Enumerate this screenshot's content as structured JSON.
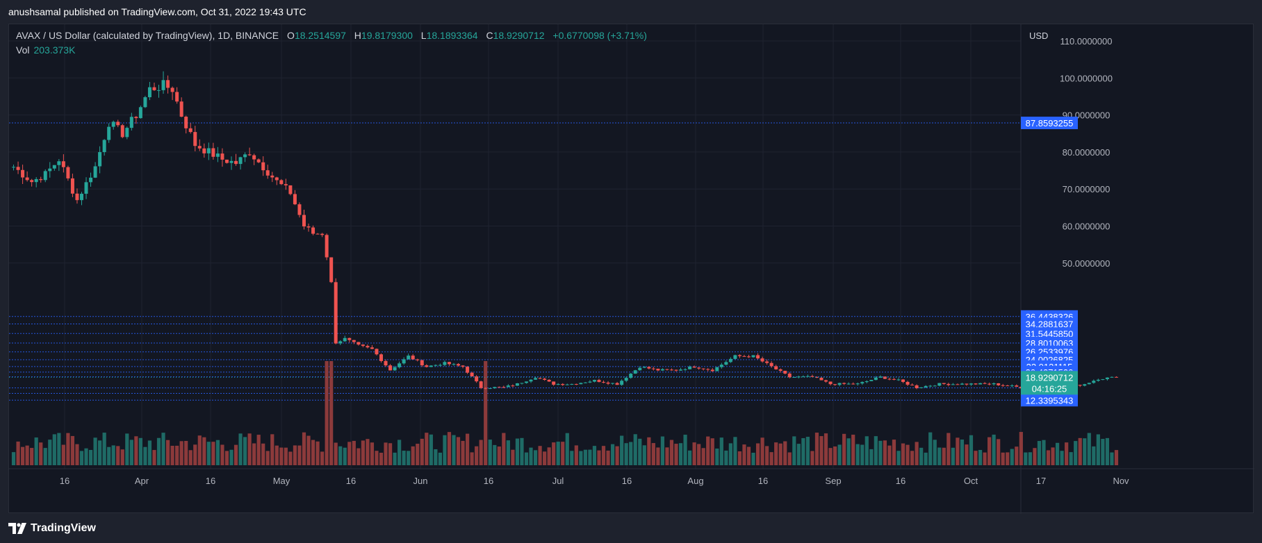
{
  "header": {
    "publish_line": "anushsamal published on TradingView.com, Oct 31, 2022 19:43 UTC"
  },
  "legend": {
    "symbol": "AVAX / US Dollar (calculated by TradingView), 1D, BINANCE",
    "o_label": "O",
    "o_value": "18.2514597",
    "h_label": "H",
    "h_value": "19.8179300",
    "l_label": "L",
    "l_value": "18.1893364",
    "c_label": "C",
    "c_value": "18.9290712",
    "change": "+0.6770098 (+3.71%)",
    "vol_label": "Vol",
    "vol_value": "203.373K"
  },
  "footer": {
    "brand": "TradingView"
  },
  "colors": {
    "up": "#26a69a",
    "down": "#ef5350",
    "vol_up": "#1f6b66",
    "vol_down": "#8c3a3b",
    "level_line": "#2962ff",
    "price_tag": "#2962ff",
    "current_tag": "#26a69a"
  },
  "chart_data": {
    "type": "candlestick",
    "currency_label": "USD",
    "y_axis_ticks": [
      "110.0000000",
      "100.0000000",
      "90.0000000",
      "80.0000000",
      "70.0000000",
      "60.0000000",
      "50.0000000"
    ],
    "x_axis_ticks": [
      "16",
      "Apr",
      "16",
      "May",
      "16",
      "Jun",
      "16",
      "Jul",
      "16",
      "Aug",
      "16",
      "Sep",
      "16",
      "Oct",
      "17",
      "Nov"
    ],
    "level_lines": [
      {
        "label": "87.8593255",
        "value": 87.8593255
      },
      {
        "label": "36.4438326",
        "value": 36.4438326
      },
      {
        "label": "34.2881637",
        "value": 34.2881637
      },
      {
        "label": "31.5445850",
        "value": 31.544585
      },
      {
        "label": "28.8010063",
        "value": 28.8010063
      },
      {
        "label": "26.2533976",
        "value": 26.2533976
      },
      {
        "label": "24.0026825",
        "value": 24.0026825
      },
      {
        "label": "22.0131115",
        "value": 22.0131115
      },
      {
        "label": "20.4271520",
        "value": 20.427152
      },
      {
        "label": "19.0746682",
        "value": 19.0746682
      },
      {
        "label": "15.8669926",
        "value": 15.8669926
      },
      {
        "label": "14.2992334",
        "value": 14.2992334
      },
      {
        "label": "12.3395343",
        "value": 12.3395343
      }
    ],
    "current_price": {
      "label": "18.9290712",
      "value": 18.9290712,
      "countdown": "04:16:25"
    },
    "close_series": [
      {
        "date": "2022-03-02",
        "close": 76
      },
      {
        "date": "2022-03-06",
        "close": 72
      },
      {
        "date": "2022-03-09",
        "close": 74
      },
      {
        "date": "2022-03-12",
        "close": 78
      },
      {
        "date": "2022-03-16",
        "close": 67
      },
      {
        "date": "2022-03-20",
        "close": 76
      },
      {
        "date": "2022-03-23",
        "close": 88
      },
      {
        "date": "2022-03-26",
        "close": 85
      },
      {
        "date": "2022-03-29",
        "close": 90
      },
      {
        "date": "2022-04-01",
        "close": 97
      },
      {
        "date": "2022-04-04",
        "close": 98
      },
      {
        "date": "2022-04-06",
        "close": 97
      },
      {
        "date": "2022-04-08",
        "close": 90
      },
      {
        "date": "2022-04-11",
        "close": 82
      },
      {
        "date": "2022-04-14",
        "close": 80
      },
      {
        "date": "2022-04-17",
        "close": 78
      },
      {
        "date": "2022-04-20",
        "close": 77
      },
      {
        "date": "2022-04-23",
        "close": 80
      },
      {
        "date": "2022-04-26",
        "close": 76
      },
      {
        "date": "2022-04-29",
        "close": 72
      },
      {
        "date": "2022-05-02",
        "close": 69
      },
      {
        "date": "2022-05-05",
        "close": 60
      },
      {
        "date": "2022-05-07",
        "close": 58
      },
      {
        "date": "2022-05-09",
        "close": 58
      },
      {
        "date": "2022-05-11",
        "close": 46
      },
      {
        "date": "2022-05-12",
        "close": 29
      },
      {
        "date": "2022-05-14",
        "close": 30
      },
      {
        "date": "2022-05-17",
        "close": 28
      },
      {
        "date": "2022-05-20",
        "close": 27
      },
      {
        "date": "2022-05-24",
        "close": 21
      },
      {
        "date": "2022-05-28",
        "close": 25
      },
      {
        "date": "2022-06-01",
        "close": 22
      },
      {
        "date": "2022-06-05",
        "close": 23
      },
      {
        "date": "2022-06-09",
        "close": 22
      },
      {
        "date": "2022-06-13",
        "close": 16
      },
      {
        "date": "2022-06-18",
        "close": 16
      },
      {
        "date": "2022-06-21",
        "close": 17
      },
      {
        "date": "2022-06-25",
        "close": 19
      },
      {
        "date": "2022-06-29",
        "close": 17
      },
      {
        "date": "2022-07-03",
        "close": 17
      },
      {
        "date": "2022-07-08",
        "close": 18
      },
      {
        "date": "2022-07-13",
        "close": 17
      },
      {
        "date": "2022-07-18",
        "close": 22
      },
      {
        "date": "2022-07-22",
        "close": 21
      },
      {
        "date": "2022-07-26",
        "close": 21
      },
      {
        "date": "2022-07-30",
        "close": 22
      },
      {
        "date": "2022-08-03",
        "close": 21
      },
      {
        "date": "2022-08-08",
        "close": 25
      },
      {
        "date": "2022-08-12",
        "close": 25
      },
      {
        "date": "2022-08-16",
        "close": 22
      },
      {
        "date": "2022-08-20",
        "close": 19
      },
      {
        "date": "2022-08-25",
        "close": 19
      },
      {
        "date": "2022-08-29",
        "close": 17
      },
      {
        "date": "2022-09-04",
        "close": 17
      },
      {
        "date": "2022-09-09",
        "close": 19
      },
      {
        "date": "2022-09-13",
        "close": 18
      },
      {
        "date": "2022-09-17",
        "close": 16
      },
      {
        "date": "2022-09-22",
        "close": 17
      },
      {
        "date": "2022-09-28",
        "close": 17
      },
      {
        "date": "2022-10-04",
        "close": 17
      },
      {
        "date": "2022-10-10",
        "close": 16
      },
      {
        "date": "2022-10-16",
        "close": 16
      },
      {
        "date": "2022-10-20",
        "close": 16
      },
      {
        "date": "2022-10-24",
        "close": 17
      },
      {
        "date": "2022-10-27",
        "close": 18.5
      },
      {
        "date": "2022-10-31",
        "close": 18.93
      }
    ],
    "volume_relative": "volume bars shown at bottom; spike around 2022-05-12 and 2022-06-13"
  }
}
